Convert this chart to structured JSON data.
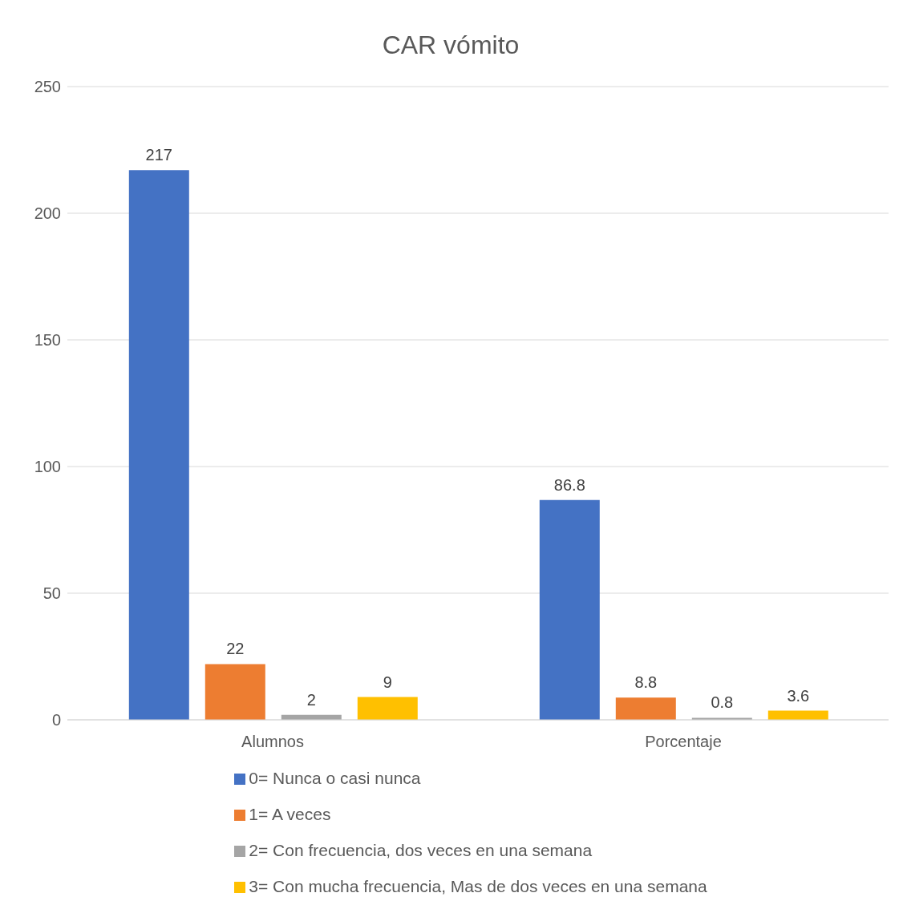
{
  "chart_data": {
    "type": "bar",
    "title": "CAR vómito",
    "categories": [
      "Alumnos",
      "Porcentaje"
    ],
    "series": [
      {
        "name": "0= Nunca o casi nunca",
        "color": "#4472c4",
        "values": [
          217,
          86.8
        ]
      },
      {
        "name": "1= A veces",
        "color": "#ed7d31",
        "values": [
          22,
          8.8
        ]
      },
      {
        "name": "2= Con frecuencia, dos veces en una semana",
        "color": "#a5a5a5",
        "values": [
          2,
          0.8
        ]
      },
      {
        "name": "3= Con mucha frecuencia, Mas de dos veces en una semana",
        "color": "#ffc000",
        "values": [
          9,
          3.6
        ]
      }
    ],
    "ylim": [
      0,
      250
    ],
    "yticks": [
      0,
      50,
      100,
      150,
      200,
      250
    ],
    "grid": "y",
    "legend": "bottom",
    "data_labels": true
  }
}
